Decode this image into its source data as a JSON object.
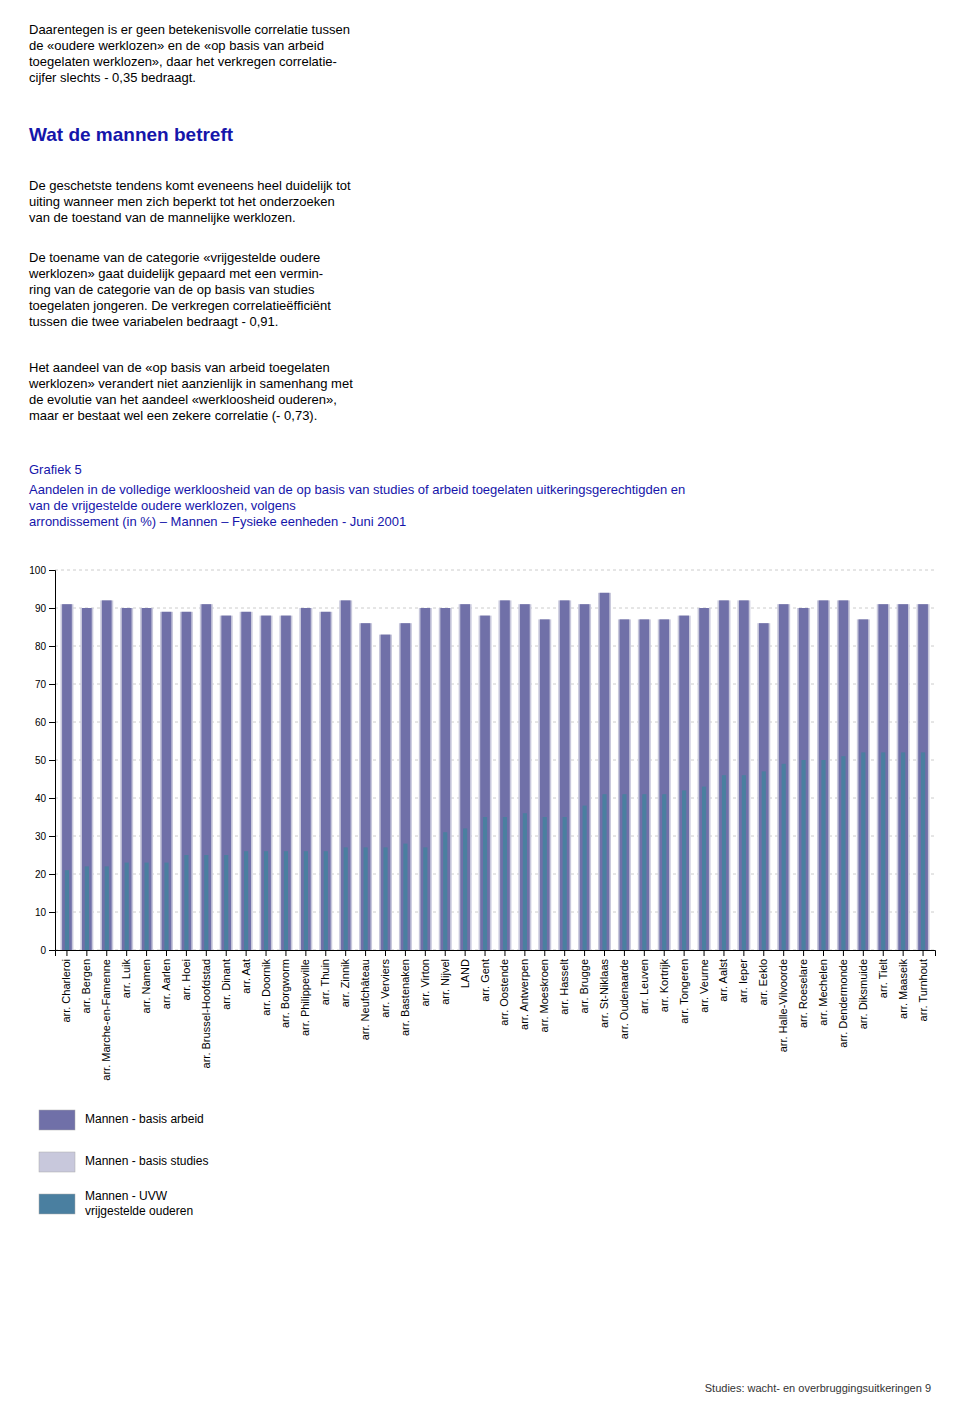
{
  "chart_data": {
    "type": "bar",
    "subtitle": "Grafiek 5",
    "title": "Aandelen in de volledige werkloosheid van de op basis van studies of arbeid toegelaten uitkeringsgerechtigden en\nvan de vrijgestelde oudere werklozen, volgens\narrondissement (in %) – Mannen – Fysieke eenheden - Juni 2001",
    "annotations": [
      "Daarentegen is er geen betekenisvolle correlatie tussen\nde «oudere werklozen» en de «op basis van arbeid\ntoegelaten werklozen», daar het verkregen correlatie-\ncijfer slechts - 0,35 bedraagt.",
      "Wat de mannen betreft",
      "De geschetste tendens komt eveneens heel duidelijk tot\nuiting wanneer men zich beperkt tot het onderzoeken\nvan de toestand van de mannelijke werklozen.",
      "De toename van de categorie «vrijgestelde oudere\nwerklozen» gaat duidelijk gepaard met een vermin-\nring van de categorie van de op basis van studies\ntoegelaten jongeren. De verkregen correlatieëfficiënt\ntussen die twee variabelen bedraagt - 0,91.",
      "Het aandeel van de «op basis van arbeid toegelaten\nwerklozen» verandert niet aanzienlijk in samenhang met\nde evolutie van het aandeel «werkloosheid ouderen»,\nmaar er bestaat wel een zekere correlatie (- 0,73).",
      "Studies: wacht- en overbruggingsuitkeringen  9"
    ],
    "categories": [
      "arr. Charleroi",
      "arr. Bergen",
      "arr. Marche-en-Famenne",
      "arr. Luik",
      "arr. Namen",
      "arr. Aarlen",
      "arr. Hoei",
      "arr. Brussel-Hoofdstad",
      "arr. Dinant",
      "arr. Aat",
      "arr. Doornik",
      "arr. Borgworm",
      "arr. Philippeville",
      "arr. Thuin",
      "arr. Zinnik",
      "arr. Neufchâteau",
      "arr. Verviers",
      "arr. Bastenaken",
      "arr. Virton",
      "arr. Nijvel",
      "LAND",
      "arr. Gent",
      "arr. Oostende",
      "arr. Antwerpen",
      "arr. Moeskroen",
      "arr. Hasselt",
      "arr. Brugge",
      "arr. St-Niklaas",
      "arr. Oudenaarde",
      "arr. Leuven",
      "arr. Kortrijk",
      "arr. Tongeren",
      "arr. Veurne",
      "arr. Aalst",
      "arr. Ieper",
      "arr. Eeklo",
      "arr. Halle-Vilvoorde",
      "arr. Roeselare",
      "arr. Mechelen",
      "arr. Dendermonde",
      "arr. Diksmuide",
      "arr. Tielt",
      "arr. Maaseik",
      "arr. Turnhout"
    ],
    "series": [
      {
        "name": "Mannen - basis arbeid",
        "color": "#7070A8",
        "values": [
          91,
          90,
          92,
          90,
          90,
          89,
          89,
          91,
          88,
          89,
          88,
          88,
          90,
          89,
          92,
          86,
          83,
          86,
          90,
          90,
          91,
          88,
          92,
          91,
          87,
          92,
          91,
          94,
          87,
          87,
          87,
          88,
          90,
          92,
          92,
          86,
          91,
          90,
          92,
          92,
          87,
          91,
          91,
          91
        ]
      },
      {
        "name": "Mannen - basis studies",
        "color": "#C8C8DC",
        "values": [
          91,
          90,
          92,
          90,
          90,
          89,
          89,
          91,
          88,
          89,
          88,
          88,
          90,
          89,
          92,
          86,
          83,
          86,
          90,
          90,
          91,
          88,
          92,
          91,
          87,
          92,
          91,
          94,
          87,
          87,
          87,
          88,
          90,
          92,
          92,
          86,
          91,
          90,
          92,
          92,
          87,
          91,
          91,
          91
        ]
      },
      {
        "name": "Mannen - UVW\nvrijgestelde ouderen",
        "color": "#4A7FA0",
        "values": [
          21,
          22,
          22,
          23,
          23,
          23,
          25,
          25,
          25,
          26,
          26,
          26,
          26,
          26,
          27,
          27,
          27,
          28,
          27,
          31,
          32,
          35,
          35,
          36,
          35,
          35,
          38,
          41,
          41,
          41,
          41,
          42,
          43,
          46,
          46,
          47,
          49,
          50,
          50,
          51,
          52,
          52,
          52,
          52
        ]
      }
    ],
    "ylim": [
      0,
      100
    ],
    "yticks": [
      0,
      10,
      20,
      30,
      40,
      50,
      60,
      70,
      80,
      90,
      100
    ],
    "grid": true
  }
}
